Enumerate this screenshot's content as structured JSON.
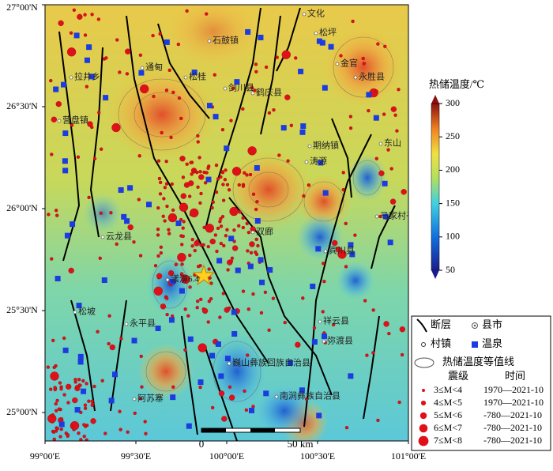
{
  "map": {
    "xticks": [
      {
        "value": 99,
        "label": "99°00'E"
      },
      {
        "value": 99.5,
        "label": "99°30'E"
      },
      {
        "value": 100,
        "label": "100°00'E"
      },
      {
        "value": 100.5,
        "label": "100°30'E"
      },
      {
        "value": 101,
        "label": "101°00'E"
      }
    ],
    "yticks": [
      {
        "value": 27,
        "label": "27°00'N"
      },
      {
        "value": 26.5,
        "label": "26°30'N"
      },
      {
        "value": 26,
        "label": "26°00'N"
      },
      {
        "value": 25.5,
        "label": "25°30'N"
      },
      {
        "value": 25,
        "label": "25°00'N"
      }
    ],
    "colorbar": {
      "title": "热储温度/℃",
      "range": [
        50,
        300
      ],
      "ticks": [
        300,
        250,
        200,
        150,
        100,
        50
      ]
    },
    "places": [
      "石鼓镇",
      "通甸",
      "拉井乡",
      "营盘镇",
      "松桂",
      "金官",
      "永胜县",
      "东山",
      "期纳镇",
      "涛源",
      "剑川县",
      "鹤庆县",
      "马家村子",
      "宾川县",
      "双廊",
      "云龙县",
      "漾濞6.4",
      "永平县",
      "松坡",
      "阿苏寨",
      "巍山彝族回族自治县",
      "祥云县",
      "弥渡县",
      "南涧彝族自治县",
      "松坪",
      "文化"
    ],
    "scalebar": [
      "0",
      "50 km"
    ],
    "legend": {
      "items": [
        "断层",
        "县市",
        "村镇",
        "温泉",
        "热储温度等值线"
      ],
      "header": [
        "震级",
        "时间"
      ],
      "rows": [
        [
          "3≤M<4",
          "1970—2021-10"
        ],
        [
          "4≤M<5",
          "1970—2021-10"
        ],
        [
          "5≤M<6",
          "-780—2021-10"
        ],
        [
          "6≤M<7",
          "-780—2021-10"
        ],
        [
          "7≤M<8",
          "-780—2021-10"
        ]
      ]
    }
  }
}
